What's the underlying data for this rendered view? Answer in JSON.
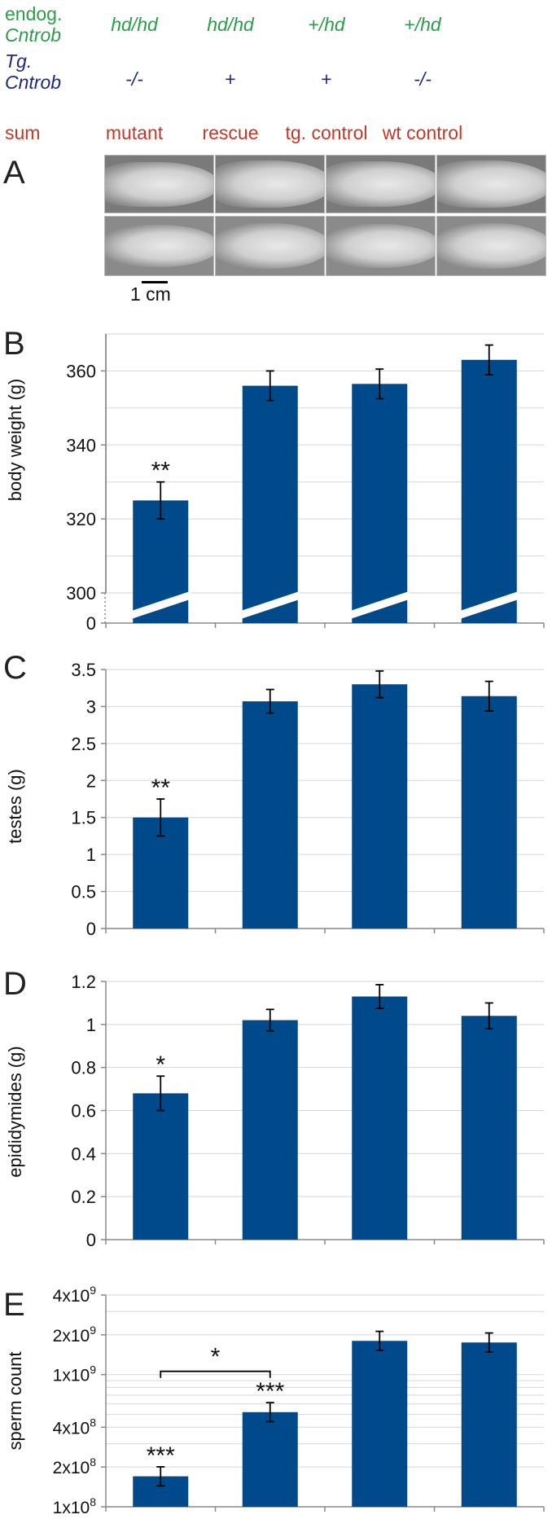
{
  "header": {
    "row1_label_line1": "endog.",
    "row1_label_line2": "Cntrob",
    "row2_label_line1": "Tg.",
    "row2_label_line2": "Cntrob",
    "row3_label": "sum",
    "columns": [
      {
        "endog": "hd/hd",
        "tg": "-/-",
        "sum": "mutant"
      },
      {
        "endog": "hd/hd",
        "tg": "+",
        "sum": "rescue"
      },
      {
        "endog": "+/hd",
        "tg": "+",
        "sum": "tg. control"
      },
      {
        "endog": "+/hd",
        "tg": "-/-",
        "sum": "wt control"
      }
    ]
  },
  "panel_a": {
    "letter": "A",
    "scale_label": "1 cm"
  },
  "colors": {
    "bar": "#004a8b",
    "green": "#2e9b4a",
    "navy": "#1c2a78",
    "red": "#c0392b"
  },
  "chart_data": [
    {
      "type": "bar",
      "panel": "B",
      "title": "",
      "ylabel": "body weight (g)",
      "categories": [
        "mutant",
        "rescue",
        "tg. control",
        "wt control"
      ],
      "values": [
        325,
        356,
        356.5,
        363
      ],
      "errors": [
        5,
        4,
        4,
        4
      ],
      "ylim": [
        0,
        370
      ],
      "axis_break": true,
      "ticks": [
        "0",
        "300",
        "320",
        "340",
        "360"
      ],
      "significance": [
        "**",
        "",
        "",
        ""
      ]
    },
    {
      "type": "bar",
      "panel": "C",
      "title": "",
      "ylabel": "testes (g)",
      "categories": [
        "mutant",
        "rescue",
        "tg. control",
        "wt control"
      ],
      "values": [
        1.5,
        3.07,
        3.3,
        3.14
      ],
      "errors": [
        0.25,
        0.16,
        0.18,
        0.2
      ],
      "ylim": [
        0,
        3.5
      ],
      "ticks": [
        "0",
        "0.5",
        "1",
        "1.5",
        "2",
        "2.5",
        "3",
        "3.5"
      ],
      "significance": [
        "**",
        "",
        "",
        ""
      ]
    },
    {
      "type": "bar",
      "panel": "D",
      "title": "",
      "ylabel": "epididymides (g)",
      "categories": [
        "mutant",
        "rescue",
        "tg. control",
        "wt control"
      ],
      "values": [
        0.68,
        1.02,
        1.13,
        1.04
      ],
      "errors": [
        0.08,
        0.05,
        0.055,
        0.06
      ],
      "ylim": [
        0,
        1.2
      ],
      "ticks": [
        "0",
        "0.2",
        "0.4",
        "0.6",
        "0.8",
        "1",
        "1.2"
      ],
      "significance": [
        "*",
        "",
        "",
        ""
      ]
    },
    {
      "type": "bar",
      "panel": "E",
      "title": "",
      "ylabel": "sperm count",
      "scale": "log",
      "categories": [
        "mutant",
        "rescue",
        "tg. control",
        "wt control"
      ],
      "values": [
        170000000,
        520000000,
        1800000000,
        1750000000
      ],
      "ylim": [
        100000000,
        4000000000
      ],
      "ticks": [
        {
          "value": 100000000,
          "base": "1x10",
          "exp": "8"
        },
        {
          "value": 200000000,
          "base": "2x10",
          "exp": "8"
        },
        {
          "value": 400000000,
          "base": "4x10",
          "exp": "8"
        },
        {
          "value": 1000000000,
          "base": "1x10",
          "exp": "9"
        },
        {
          "value": 2000000000,
          "base": "2x10",
          "exp": "9"
        },
        {
          "value": 4000000000,
          "base": "4x10",
          "exp": "9"
        }
      ],
      "significance": [
        "***",
        "***",
        "",
        ""
      ],
      "bracket": {
        "from": 0,
        "to": 1,
        "label": "*"
      }
    }
  ]
}
